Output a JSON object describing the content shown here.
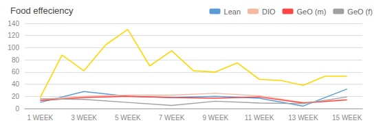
{
  "chart_data": {
    "type": "line",
    "title": "Food effeciency",
    "series": [
      {
        "color": "#FFD700",
        "x": [
          1,
          2,
          3,
          4,
          5,
          6,
          7,
          8,
          9,
          10,
          11,
          12,
          13,
          14,
          15
        ],
        "values": [
          18,
          88,
          62,
          105,
          130,
          70,
          95,
          62,
          60,
          75,
          48,
          46,
          38,
          53,
          53
        ]
      },
      {
        "name": "Lean",
        "color": "#5B9BD5",
        "x": [
          1,
          3,
          5,
          7,
          9,
          11,
          13,
          15
        ],
        "values": [
          10,
          28,
          20,
          18,
          20,
          17,
          4,
          32
        ]
      },
      {
        "name": "DIO",
        "color": "#F4B8A0",
        "x": [
          1,
          3,
          5,
          7,
          9,
          11,
          13,
          15
        ],
        "values": [
          15,
          20,
          22,
          22,
          25,
          21,
          10,
          15
        ]
      },
      {
        "name": "GeO (m)",
        "color": "#FF4444",
        "x": [
          1,
          3,
          5,
          7,
          9,
          11,
          13,
          15
        ],
        "values": [
          13,
          18,
          20,
          18,
          17,
          19,
          9,
          14
        ]
      },
      {
        "name": "GeO (f)",
        "color": "#A0A0A0",
        "x": [
          1,
          3,
          5,
          7,
          9,
          11,
          13,
          15
        ],
        "values": [
          16,
          15,
          10,
          5,
          12,
          9,
          8,
          19
        ]
      }
    ],
    "xlim": [
      0.3,
      15.7
    ],
    "xticks": [
      {
        "value": 1,
        "label": "1 WEEK"
      },
      {
        "value": 3,
        "label": "3 WEEK"
      },
      {
        "value": 5,
        "label": "5 WEEK"
      },
      {
        "value": 7,
        "label": "7 WEEK"
      },
      {
        "value": 9,
        "label": "9 WEEK"
      },
      {
        "value": 11,
        "label": "11 WEEK"
      },
      {
        "value": 13,
        "label": "13 WEEK"
      },
      {
        "value": 15,
        "label": "15 WEEK"
      }
    ],
    "ylim": [
      0,
      140
    ],
    "yticks": [
      0,
      20,
      40,
      60,
      80,
      100,
      120,
      140
    ],
    "grid": true,
    "legend": "upper right"
  }
}
